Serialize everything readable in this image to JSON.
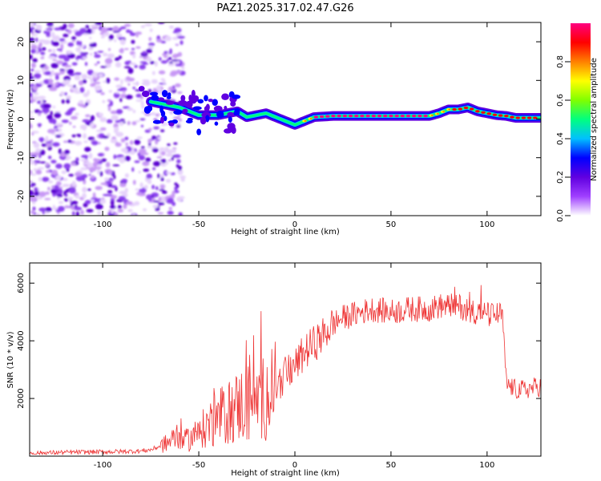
{
  "figure_title": "PAZ1.2025.317.02.47.G26",
  "chart_data": [
    {
      "type": "heatmap",
      "title": "PAZ1.2025.317.02.47.G26",
      "xlabel": "Height of straight line (km)",
      "ylabel": "Frequency (Hz)",
      "xlim": [
        -138,
        128
      ],
      "ylim": [
        -25,
        25
      ],
      "xticks": [
        -100,
        -50,
        0,
        50,
        100
      ],
      "yticks": [
        -20,
        -10,
        0,
        10,
        20
      ],
      "ridge": {
        "description": "dominant frequency ridge of the spectrogram (Hz vs km)",
        "x": [
          -75,
          -70,
          -65,
          -60,
          -55,
          -50,
          -45,
          -40,
          -35,
          -30,
          -25,
          -20,
          -15,
          -10,
          -5,
          0,
          5,
          10,
          20,
          30,
          40,
          50,
          60,
          70,
          75,
          80,
          85,
          90,
          95,
          100,
          105,
          110,
          115,
          120,
          125,
          128
        ],
        "y": [
          4.5,
          4.0,
          3.5,
          3.0,
          2.0,
          1.0,
          1.0,
          1.0,
          1.5,
          2.0,
          0.5,
          1.0,
          1.5,
          0.5,
          -0.5,
          -1.5,
          -0.5,
          0.5,
          0.8,
          0.8,
          0.8,
          0.8,
          0.8,
          0.8,
          1.5,
          2.5,
          2.5,
          3.0,
          2.0,
          1.5,
          1.0,
          0.8,
          0.3,
          0.3,
          0.3,
          0.3
        ]
      },
      "noise_region": [
        -138,
        -78
      ],
      "colorbar": {
        "label": "Normalized spectral amplitude",
        "ticks": [
          "0.0",
          "0.2",
          "0.4",
          "0.6",
          "0.8"
        ],
        "range": [
          0,
          1
        ],
        "colors": [
          "#ffffff",
          "#a040ff",
          "#6000e0",
          "#0000ff",
          "#00c0ff",
          "#00ff80",
          "#80ff00",
          "#ffff00",
          "#ff8000",
          "#ff0000",
          "#ff0080"
        ]
      }
    },
    {
      "type": "line",
      "xlabel": "Height of straight line (km)",
      "ylabel": "SNR (10 * v/v)",
      "xlim": [
        -138,
        128
      ],
      "ylim": [
        0,
        6700
      ],
      "xticks": [
        -100,
        -50,
        0,
        50,
        100
      ],
      "yticks": [
        2000,
        4000,
        6000
      ],
      "color": "#ee3333",
      "series": [
        {
          "name": "SNR",
          "x": [
            -138,
            -120,
            -100,
            -90,
            -80,
            -75,
            -70,
            -65,
            -62,
            -60,
            -58,
            -55,
            -50,
            -45,
            -40,
            -35,
            -30,
            -25,
            -20,
            -15,
            -10,
            -5,
            0,
            5,
            10,
            15,
            20,
            25,
            30,
            35,
            40,
            50,
            60,
            70,
            75,
            80,
            85,
            90,
            95,
            100,
            105,
            108,
            110,
            115,
            120,
            125,
            128
          ],
          "values": [
            100,
            130,
            150,
            160,
            180,
            220,
            350,
            500,
            700,
            900,
            500,
            600,
            800,
            1100,
            1300,
            1500,
            1700,
            1900,
            1900,
            2100,
            2400,
            2800,
            3100,
            3600,
            3900,
            4200,
            4600,
            4800,
            4900,
            5000,
            5100,
            5000,
            5100,
            5100,
            5200,
            5200,
            5200,
            5100,
            5000,
            4900,
            4900,
            4900,
            2500,
            2300,
            2300,
            2400,
            2400
          ]
        }
      ]
    }
  ]
}
